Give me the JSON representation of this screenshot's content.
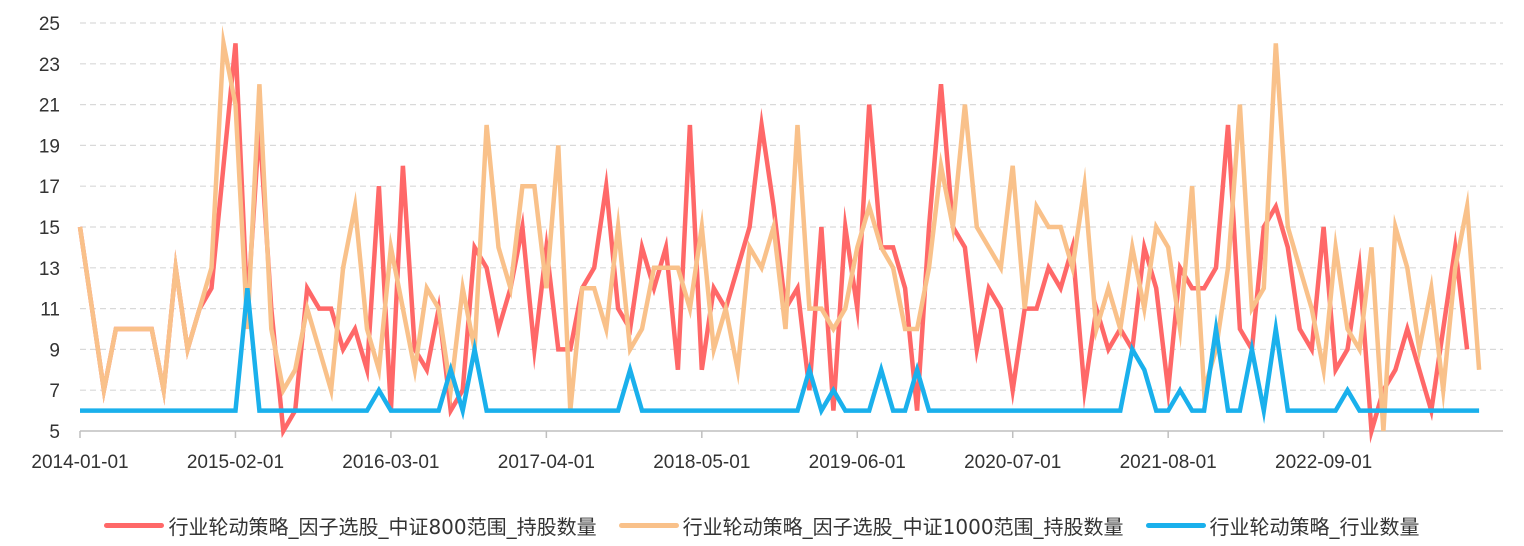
{
  "chart_data": {
    "type": "line",
    "ylim": [
      5,
      25
    ],
    "yticks": [
      5,
      7,
      9,
      11,
      13,
      15,
      17,
      19,
      21,
      23,
      25
    ],
    "xticks": [
      "2014-01-01",
      "2015-02-01",
      "2016-03-01",
      "2017-04-01",
      "2018-05-01",
      "2019-06-01",
      "2020-07-01",
      "2021-08-01",
      "2022-09-01"
    ],
    "x_start": "2014-01",
    "x_end": "2023-12",
    "grid": true,
    "legend_position": "bottom",
    "series": [
      {
        "name": "行业轮动策略_因子选股_中证800范围_持股数量",
        "color": "#FF6868",
        "points": [
          [
            "2014-01",
            15
          ],
          [
            "2014-02",
            11
          ],
          [
            "2014-03",
            7
          ],
          [
            "2014-04",
            10
          ],
          [
            "2014-05",
            10
          ],
          [
            "2014-06",
            10
          ],
          [
            "2014-07",
            10
          ],
          [
            "2014-08",
            7
          ],
          [
            "2014-09",
            13
          ],
          [
            "2014-10",
            9
          ],
          [
            "2014-11",
            11
          ],
          [
            "2014-12",
            12
          ],
          [
            "2015-01",
            18
          ],
          [
            "2015-02",
            24
          ],
          [
            "2015-03",
            11
          ],
          [
            "2015-04",
            20
          ],
          [
            "2015-05",
            11
          ],
          [
            "2015-06",
            5
          ],
          [
            "2015-07",
            6
          ],
          [
            "2015-08",
            12
          ],
          [
            "2015-09",
            11
          ],
          [
            "2015-10",
            11
          ],
          [
            "2015-11",
            9
          ],
          [
            "2015-12",
            10
          ],
          [
            "2016-01",
            8
          ],
          [
            "2016-02",
            17
          ],
          [
            "2016-03",
            6
          ],
          [
            "2016-04",
            18
          ],
          [
            "2016-05",
            9
          ],
          [
            "2016-06",
            8
          ],
          [
            "2016-07",
            11
          ],
          [
            "2016-08",
            6
          ],
          [
            "2016-09",
            7
          ],
          [
            "2016-10",
            14
          ],
          [
            "2016-11",
            13
          ],
          [
            "2016-12",
            10
          ],
          [
            "2017-01",
            12
          ],
          [
            "2017-02",
            15
          ],
          [
            "2017-03",
            9
          ],
          [
            "2017-04",
            14
          ],
          [
            "2017-05",
            9
          ],
          [
            "2017-06",
            9
          ],
          [
            "2017-07",
            12
          ],
          [
            "2017-08",
            13
          ],
          [
            "2017-09",
            17
          ],
          [
            "2017-10",
            11
          ],
          [
            "2017-11",
            10
          ],
          [
            "2017-12",
            14
          ],
          [
            "2018-01",
            12
          ],
          [
            "2018-02",
            14
          ],
          [
            "2018-03",
            8
          ],
          [
            "2018-04",
            20
          ],
          [
            "2018-05",
            8
          ],
          [
            "2018-06",
            12
          ],
          [
            "2018-07",
            11
          ],
          [
            "2018-08",
            13
          ],
          [
            "2018-09",
            15
          ],
          [
            "2018-10",
            20
          ],
          [
            "2018-11",
            16
          ],
          [
            "2018-12",
            11
          ],
          [
            "2019-01",
            12
          ],
          [
            "2019-02",
            7
          ],
          [
            "2019-03",
            15
          ],
          [
            "2019-04",
            6
          ],
          [
            "2019-05",
            15
          ],
          [
            "2019-06",
            11
          ],
          [
            "2019-07",
            21
          ],
          [
            "2019-08",
            14
          ],
          [
            "2019-09",
            14
          ],
          [
            "2019-10",
            12
          ],
          [
            "2019-11",
            6
          ],
          [
            "2019-12",
            15
          ],
          [
            "2020-01",
            22
          ],
          [
            "2020-02",
            15
          ],
          [
            "2020-03",
            14
          ],
          [
            "2020-04",
            9
          ],
          [
            "2020-05",
            12
          ],
          [
            "2020-06",
            11
          ],
          [
            "2020-07",
            7
          ],
          [
            "2020-08",
            11
          ],
          [
            "2020-09",
            11
          ],
          [
            "2020-10",
            13
          ],
          [
            "2020-11",
            12
          ],
          [
            "2020-12",
            14
          ],
          [
            "2021-01",
            7
          ],
          [
            "2021-02",
            11
          ],
          [
            "2021-03",
            9
          ],
          [
            "2021-04",
            10
          ],
          [
            "2021-05",
            9
          ],
          [
            "2021-06",
            14
          ],
          [
            "2021-07",
            12
          ],
          [
            "2021-08",
            7
          ],
          [
            "2021-09",
            13
          ],
          [
            "2021-10",
            12
          ],
          [
            "2021-11",
            12
          ],
          [
            "2021-12",
            13
          ],
          [
            "2022-01",
            20
          ],
          [
            "2022-02",
            10
          ],
          [
            "2022-03",
            9
          ],
          [
            "2022-04",
            15
          ],
          [
            "2022-05",
            16
          ],
          [
            "2022-06",
            14
          ],
          [
            "2022-07",
            10
          ],
          [
            "2022-08",
            9
          ],
          [
            "2022-09",
            15
          ],
          [
            "2022-10",
            8
          ],
          [
            "2022-11",
            9
          ],
          [
            "2022-12",
            13
          ],
          [
            "2023-01",
            5
          ],
          [
            "2023-02",
            7
          ],
          [
            "2023-03",
            8
          ],
          [
            "2023-04",
            10
          ],
          [
            "2023-05",
            8
          ],
          [
            "2023-06",
            6
          ],
          [
            "2023-07",
            10
          ],
          [
            "2023-08",
            14
          ],
          [
            "2023-09",
            9
          ]
        ]
      },
      {
        "name": "行业轮动策略_因子选股_中证1000范围_持股数量",
        "color": "#F9C18A",
        "points": [
          [
            "2014-01",
            15
          ],
          [
            "2014-02",
            11
          ],
          [
            "2014-03",
            7
          ],
          [
            "2014-04",
            10
          ],
          [
            "2014-05",
            10
          ],
          [
            "2014-06",
            10
          ],
          [
            "2014-07",
            10
          ],
          [
            "2014-08",
            7
          ],
          [
            "2014-09",
            13
          ],
          [
            "2014-10",
            9
          ],
          [
            "2014-11",
            11
          ],
          [
            "2014-12",
            13
          ],
          [
            "2015-01",
            24
          ],
          [
            "2015-02",
            21
          ],
          [
            "2015-03",
            10
          ],
          [
            "2015-04",
            22
          ],
          [
            "2015-05",
            10
          ],
          [
            "2015-06",
            7
          ],
          [
            "2015-07",
            8
          ],
          [
            "2015-08",
            11
          ],
          [
            "2015-09",
            9
          ],
          [
            "2015-10",
            7
          ],
          [
            "2015-11",
            13
          ],
          [
            "2015-12",
            16
          ],
          [
            "2016-01",
            10
          ],
          [
            "2016-02",
            8
          ],
          [
            "2016-03",
            14
          ],
          [
            "2016-04",
            11
          ],
          [
            "2016-05",
            8
          ],
          [
            "2016-06",
            12
          ],
          [
            "2016-07",
            11
          ],
          [
            "2016-08",
            7
          ],
          [
            "2016-09",
            12
          ],
          [
            "2016-10",
            9
          ],
          [
            "2016-11",
            20
          ],
          [
            "2016-12",
            14
          ],
          [
            "2017-01",
            12
          ],
          [
            "2017-02",
            17
          ],
          [
            "2017-03",
            17
          ],
          [
            "2017-04",
            12
          ],
          [
            "2017-05",
            19
          ],
          [
            "2017-06",
            6
          ],
          [
            "2017-07",
            12
          ],
          [
            "2017-08",
            12
          ],
          [
            "2017-09",
            10
          ],
          [
            "2017-10",
            15
          ],
          [
            "2017-11",
            9
          ],
          [
            "2017-12",
            10
          ],
          [
            "2018-01",
            13
          ],
          [
            "2018-02",
            13
          ],
          [
            "2018-03",
            13
          ],
          [
            "2018-04",
            11
          ],
          [
            "2018-05",
            15
          ],
          [
            "2018-06",
            9
          ],
          [
            "2018-07",
            11
          ],
          [
            "2018-08",
            8
          ],
          [
            "2018-09",
            14
          ],
          [
            "2018-10",
            13
          ],
          [
            "2018-11",
            15
          ],
          [
            "2018-12",
            10
          ],
          [
            "2019-01",
            20
          ],
          [
            "2019-02",
            11
          ],
          [
            "2019-03",
            11
          ],
          [
            "2019-04",
            10
          ],
          [
            "2019-05",
            11
          ],
          [
            "2019-06",
            14
          ],
          [
            "2019-07",
            16
          ],
          [
            "2019-08",
            14
          ],
          [
            "2019-09",
            13
          ],
          [
            "2019-10",
            10
          ],
          [
            "2019-11",
            10
          ],
          [
            "2019-12",
            13
          ],
          [
            "2020-01",
            18
          ],
          [
            "2020-02",
            15
          ],
          [
            "2020-03",
            21
          ],
          [
            "2020-04",
            15
          ],
          [
            "2020-05",
            14
          ],
          [
            "2020-06",
            13
          ],
          [
            "2020-07",
            18
          ],
          [
            "2020-08",
            11
          ],
          [
            "2020-09",
            16
          ],
          [
            "2020-10",
            15
          ],
          [
            "2020-11",
            15
          ],
          [
            "2020-12",
            13
          ],
          [
            "2021-01",
            17
          ],
          [
            "2021-02",
            10
          ],
          [
            "2021-03",
            12
          ],
          [
            "2021-04",
            10
          ],
          [
            "2021-05",
            14
          ],
          [
            "2021-06",
            11
          ],
          [
            "2021-07",
            15
          ],
          [
            "2021-08",
            14
          ],
          [
            "2021-09",
            10
          ],
          [
            "2021-10",
            17
          ],
          [
            "2021-11",
            7
          ],
          [
            "2021-12",
            9
          ],
          [
            "2022-01",
            13
          ],
          [
            "2022-02",
            21
          ],
          [
            "2022-03",
            11
          ],
          [
            "2022-04",
            12
          ],
          [
            "2022-05",
            24
          ],
          [
            "2022-06",
            15
          ],
          [
            "2022-07",
            13
          ],
          [
            "2022-08",
            11
          ],
          [
            "2022-09",
            8
          ],
          [
            "2022-10",
            14
          ],
          [
            "2022-11",
            10
          ],
          [
            "2022-12",
            9
          ],
          [
            "2023-01",
            14
          ],
          [
            "2023-02",
            5
          ],
          [
            "2023-03",
            15
          ],
          [
            "2023-04",
            13
          ],
          [
            "2023-05",
            9
          ],
          [
            "2023-06",
            12
          ],
          [
            "2023-07",
            7
          ],
          [
            "2023-08",
            13
          ],
          [
            "2023-09",
            16
          ],
          [
            "2023-10",
            8
          ]
        ]
      },
      {
        "name": "行业轮动策略_行业数量",
        "color": "#1AB0EC",
        "points": [
          [
            "2014-01",
            6
          ],
          [
            "2015-02",
            6
          ],
          [
            "2015-03",
            12
          ],
          [
            "2015-04",
            6
          ],
          [
            "2016-01",
            6
          ],
          [
            "2016-02",
            7
          ],
          [
            "2016-03",
            6
          ],
          [
            "2016-07",
            6
          ],
          [
            "2016-08",
            8
          ],
          [
            "2016-09",
            6
          ],
          [
            "2016-10",
            9
          ],
          [
            "2016-11",
            6
          ],
          [
            "2017-10",
            6
          ],
          [
            "2017-11",
            8
          ],
          [
            "2017-12",
            6
          ],
          [
            "2019-01",
            6
          ],
          [
            "2019-02",
            8
          ],
          [
            "2019-03",
            6
          ],
          [
            "2019-04",
            7
          ],
          [
            "2019-05",
            6
          ],
          [
            "2019-07",
            6
          ],
          [
            "2019-08",
            8
          ],
          [
            "2019-09",
            6
          ],
          [
            "2019-10",
            6
          ],
          [
            "2019-11",
            8
          ],
          [
            "2019-12",
            6
          ],
          [
            "2021-04",
            6
          ],
          [
            "2021-05",
            9
          ],
          [
            "2021-06",
            8
          ],
          [
            "2021-07",
            6
          ],
          [
            "2021-08",
            6
          ],
          [
            "2021-09",
            7
          ],
          [
            "2021-10",
            6
          ],
          [
            "2021-11",
            6
          ],
          [
            "2021-12",
            10
          ],
          [
            "2022-01",
            6
          ],
          [
            "2022-02",
            6
          ],
          [
            "2022-03",
            9
          ],
          [
            "2022-04",
            6
          ],
          [
            "2022-05",
            10
          ],
          [
            "2022-06",
            6
          ],
          [
            "2022-10",
            6
          ],
          [
            "2022-11",
            7
          ],
          [
            "2022-12",
            6
          ],
          [
            "2023-10",
            6
          ]
        ]
      }
    ]
  }
}
